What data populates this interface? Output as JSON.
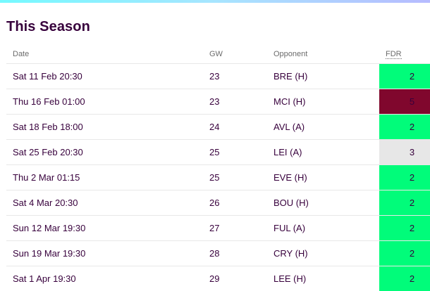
{
  "section": {
    "title": "This Season"
  },
  "table": {
    "headers": {
      "date": "Date",
      "gw": "GW",
      "opponent": "Opponent",
      "fdr": "FDR"
    },
    "rows": [
      {
        "date": "Sat 11 Feb 20:30",
        "gw": "23",
        "opponent": "BRE (H)",
        "fdr": "2"
      },
      {
        "date": "Thu 16 Feb 01:00",
        "gw": "23",
        "opponent": "MCI (H)",
        "fdr": "5"
      },
      {
        "date": "Sat 18 Feb 18:00",
        "gw": "24",
        "opponent": "AVL (A)",
        "fdr": "2"
      },
      {
        "date": "Sat 25 Feb 20:30",
        "gw": "25",
        "opponent": "LEI (A)",
        "fdr": "3"
      },
      {
        "date": "Thu 2 Mar 01:15",
        "gw": "25",
        "opponent": "EVE (H)",
        "fdr": "2"
      },
      {
        "date": "Sat 4 Mar 20:30",
        "gw": "26",
        "opponent": "BOU (H)",
        "fdr": "2"
      },
      {
        "date": "Sun 12 Mar 19:30",
        "gw": "27",
        "opponent": "FUL (A)",
        "fdr": "2"
      },
      {
        "date": "Sun 19 Mar 19:30",
        "gw": "28",
        "opponent": "CRY (H)",
        "fdr": "2"
      },
      {
        "date": "Sat 1 Apr 19:30",
        "gw": "29",
        "opponent": "LEE (H)",
        "fdr": "2"
      }
    ]
  },
  "fdr_colors": {
    "2": "#01fc7a",
    "3": "#e7e7e7",
    "5": "#80072d"
  },
  "theme": {
    "title_color": "#37003c",
    "header_text_color": "#6b6b6b",
    "divider_color": "#e8e8e8"
  }
}
